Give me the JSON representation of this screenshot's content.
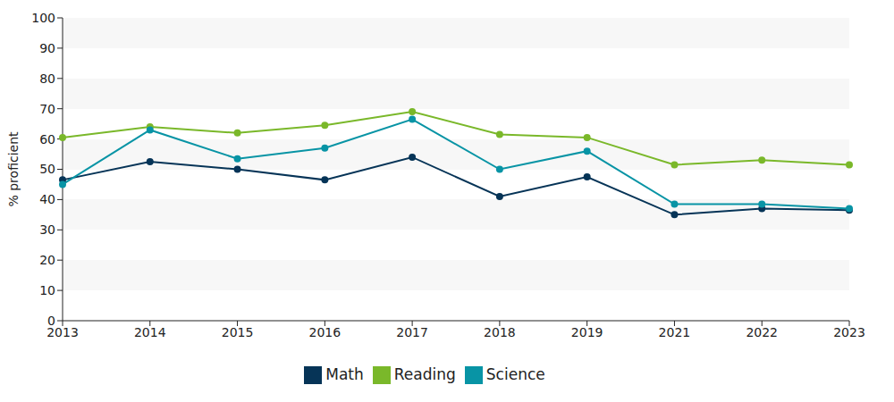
{
  "chart_data": {
    "type": "line",
    "y_label": "% proficient",
    "categories": [
      "2013",
      "2014",
      "2015",
      "2016",
      "2017",
      "2018",
      "2019",
      "2021",
      "2022",
      "2023"
    ],
    "series": [
      {
        "name": "Math",
        "color": "#063457",
        "values": [
          46.5,
          52.5,
          50,
          46.5,
          54,
          41,
          47.5,
          35,
          37,
          36.5
        ]
      },
      {
        "name": "Reading",
        "color": "#7ab82a",
        "values": [
          60.5,
          64,
          62,
          64.5,
          69,
          61.5,
          60.5,
          51.5,
          53,
          51.5
        ]
      },
      {
        "name": "Science",
        "color": "#0894a5",
        "values": [
          45,
          63,
          53.5,
          57,
          66.5,
          50,
          56,
          38.5,
          38.5,
          37
        ]
      }
    ],
    "ylim": [
      0,
      100
    ],
    "yticks": [
      0,
      10,
      20,
      30,
      40,
      50,
      60,
      70,
      80,
      90,
      100
    ],
    "grid": true,
    "legend": "bottom",
    "marker": "circle"
  }
}
